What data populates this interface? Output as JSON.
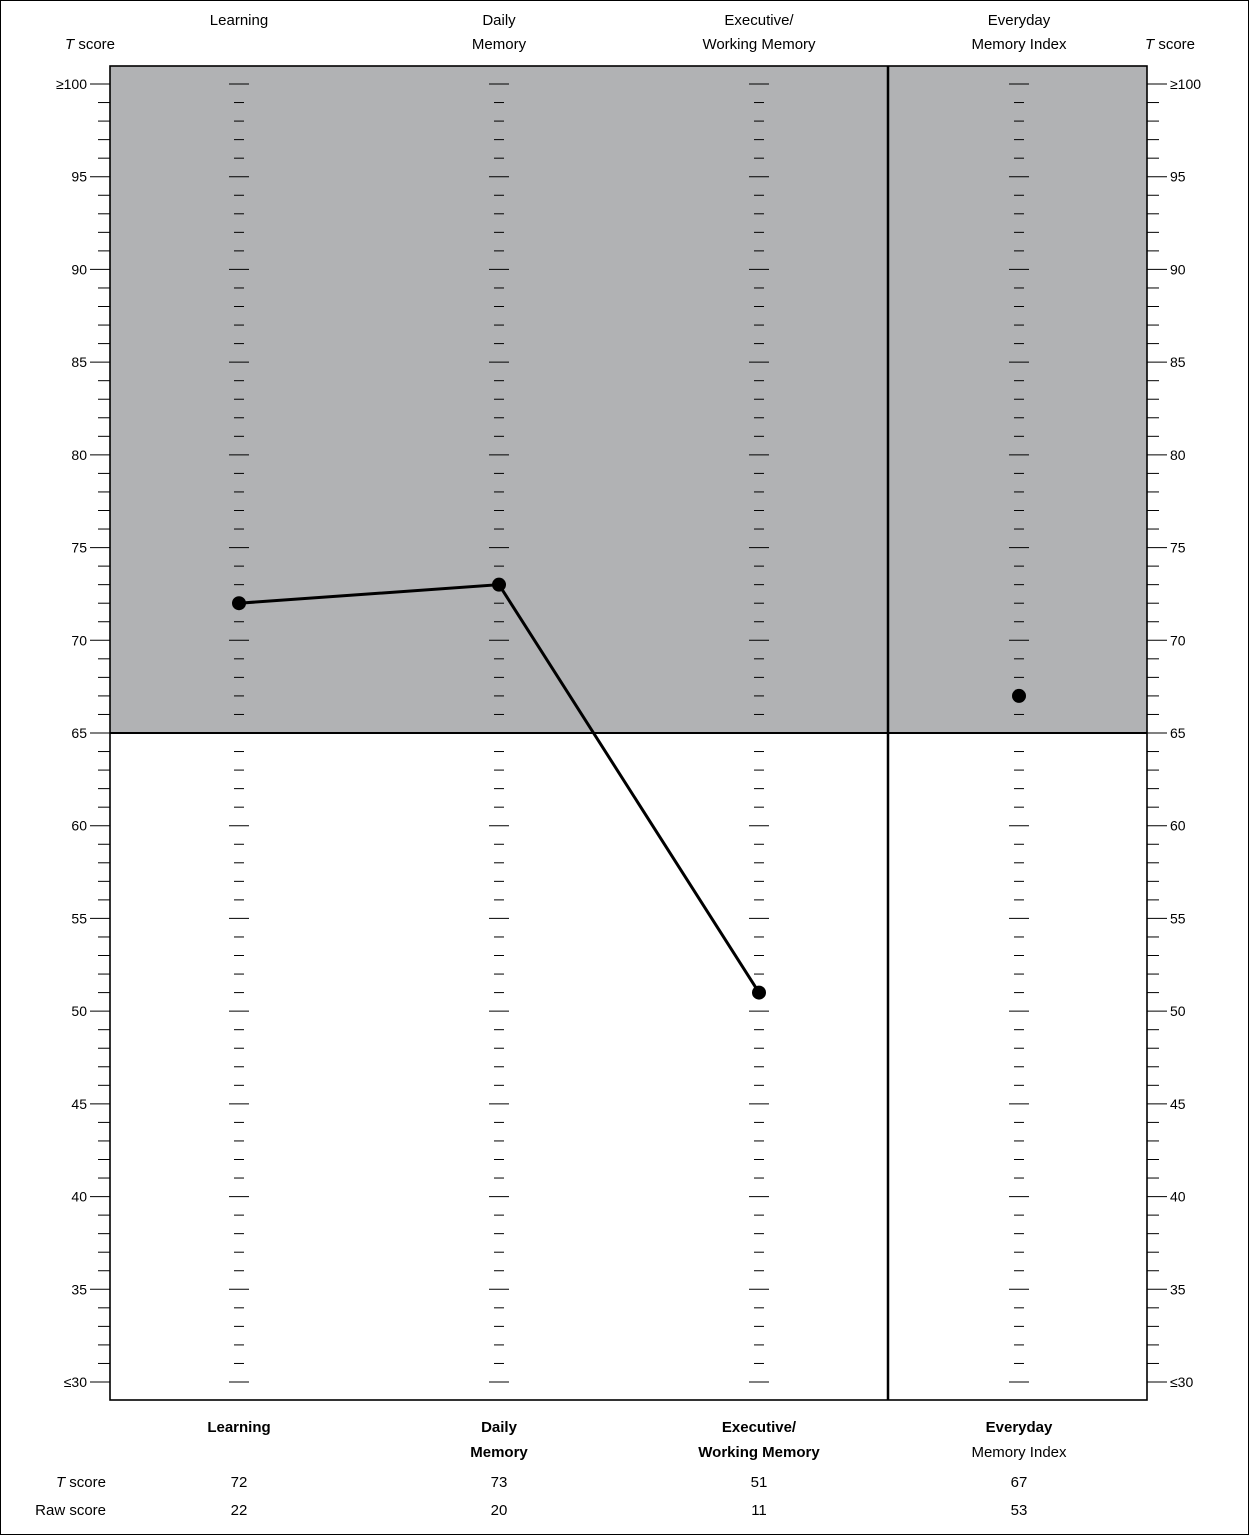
{
  "chart_data": {
    "type": "line",
    "y_axis_label_prefix": "T",
    "y_axis_label_suffix": " score",
    "y_range": [
      30,
      100
    ],
    "y_tick_labels": [
      {
        "value": 100,
        "label": "≥100"
      },
      {
        "value": 95,
        "label": "95"
      },
      {
        "value": 90,
        "label": "90"
      },
      {
        "value": 85,
        "label": "85"
      },
      {
        "value": 80,
        "label": "80"
      },
      {
        "value": 75,
        "label": "75"
      },
      {
        "value": 70,
        "label": "70"
      },
      {
        "value": 65,
        "label": "65"
      },
      {
        "value": 60,
        "label": "60"
      },
      {
        "value": 55,
        "label": "55"
      },
      {
        "value": 50,
        "label": "50"
      },
      {
        "value": 45,
        "label": "45"
      },
      {
        "value": 40,
        "label": "40"
      },
      {
        "value": 35,
        "label": "35"
      },
      {
        "value": 30,
        "label": "≤30"
      }
    ],
    "shaded_region": {
      "from": 65,
      "to": 100,
      "color": "#b1b2b4"
    },
    "columns": [
      {
        "key": "learning",
        "top_label": [
          "Learning"
        ],
        "bottom_label": [
          "Learning"
        ],
        "bottom_bold": [
          true
        ],
        "t_score": 72,
        "raw_score": 22,
        "connected": true
      },
      {
        "key": "daily_memory",
        "top_label": [
          "Daily",
          "Memory"
        ],
        "bottom_label": [
          "Daily",
          "Memory"
        ],
        "bottom_bold": [
          true,
          true
        ],
        "t_score": 73,
        "raw_score": 20,
        "connected": true
      },
      {
        "key": "executive_working_memory",
        "top_label": [
          "Executive/",
          "Working Memory"
        ],
        "bottom_label": [
          "Executive/",
          "Working Memory"
        ],
        "bottom_bold": [
          true,
          true
        ],
        "t_score": 51,
        "raw_score": 11,
        "connected": true
      },
      {
        "key": "everyday_memory_index",
        "top_label": [
          "Everyday",
          "Memory Index"
        ],
        "bottom_label": [
          "Everyday",
          "Memory Index"
        ],
        "bottom_bold": [
          true,
          false
        ],
        "t_score": 67,
        "raw_score": 53,
        "connected": false
      }
    ],
    "row_labels": {
      "t_score_prefix": "T",
      "t_score_suffix": " score",
      "raw_score": "Raw score"
    },
    "grid": false
  }
}
